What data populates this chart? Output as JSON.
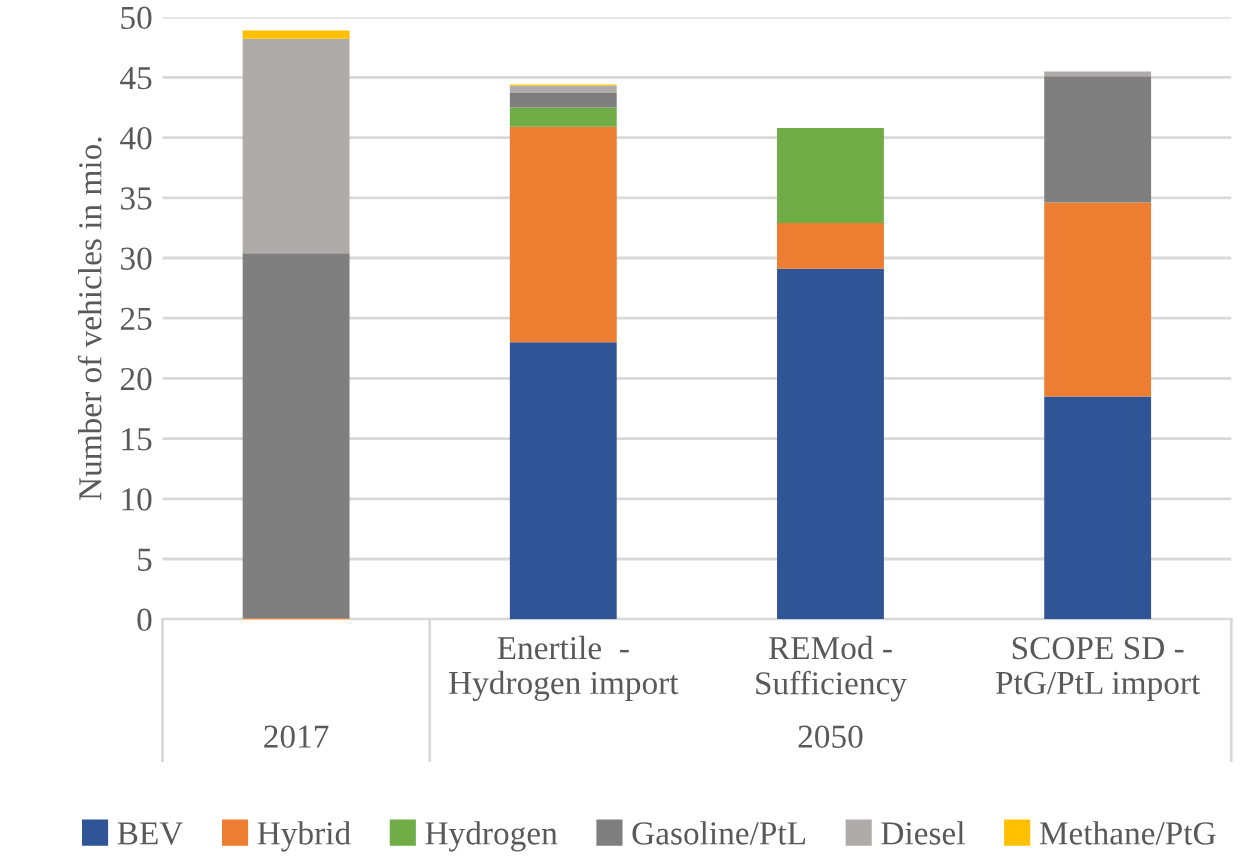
{
  "chart_data": {
    "type": "bar",
    "stacked": true,
    "ylabel": "Number of vehicles in mio.",
    "categories": [
      null,
      "Enertile  -\nHydrogen import",
      "REMod -\nSufficiency",
      "SCOPE SD -\nPtG/PtL import"
    ],
    "annotations": [
      "2017",
      "2050"
    ],
    "series": [
      {
        "name": "BEV",
        "color": "#2f5597",
        "values": [
          0,
          23.0,
          29.1,
          18.5
        ]
      },
      {
        "name": "Hybrid",
        "color": "#ed7d31",
        "values": [
          0.1,
          17.9,
          3.8,
          16.1
        ]
      },
      {
        "name": "Hydrogen",
        "color": "#70ad47",
        "values": [
          0,
          1.6,
          7.9,
          0
        ]
      },
      {
        "name": "Gasoline/PtL",
        "color": "#7f7f7f",
        "values": [
          30.3,
          1.2,
          0,
          10.5
        ]
      },
      {
        "name": "Diesel",
        "color": "#afabab",
        "values": [
          17.8,
          0.6,
          0,
          0.4
        ]
      },
      {
        "name": "Methane/PtG",
        "color": "#ffc000",
        "values": [
          0.7,
          0.1,
          0,
          0
        ]
      }
    ],
    "ylim": [
      0,
      50
    ],
    "yticks": [
      0,
      5,
      10,
      15,
      20,
      25,
      30,
      35,
      40,
      45,
      50
    ],
    "grid": "y",
    "legend": "bottom"
  }
}
